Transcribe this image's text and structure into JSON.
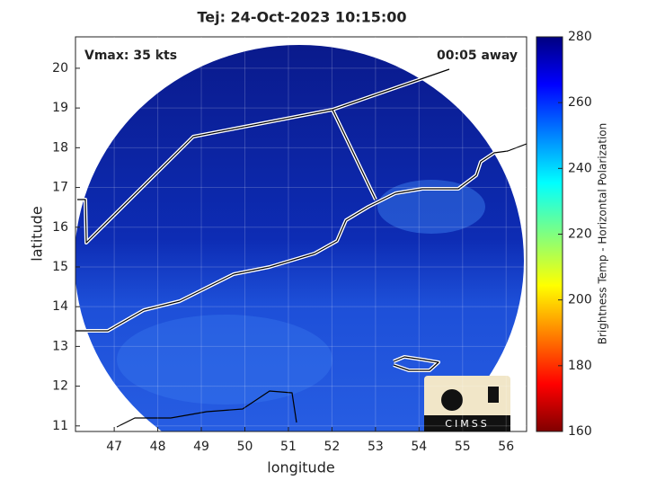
{
  "title": "Tej: 24-Oct-2023 10:15:00",
  "annotations": {
    "vmax": "Vmax: 35 kts",
    "time_away": "00:05 away"
  },
  "axes": {
    "xlabel": "longitude",
    "ylabel": "latitude",
    "xlim": [
      46.11,
      56.47
    ],
    "ylim": [
      10.86,
      20.79
    ],
    "xticks": [
      47,
      48,
      49,
      50,
      51,
      52,
      53,
      54,
      55,
      56
    ],
    "yticks": [
      11,
      12,
      13,
      14,
      15,
      16,
      17,
      18,
      19,
      20
    ],
    "grid": true
  },
  "colorbar": {
    "label": "Brightness Temp - Horizontal Polarization",
    "lim": [
      160,
      280
    ],
    "ticks": [
      160,
      180,
      200,
      220,
      240,
      260,
      280
    ]
  },
  "logo": "CIMSS"
}
